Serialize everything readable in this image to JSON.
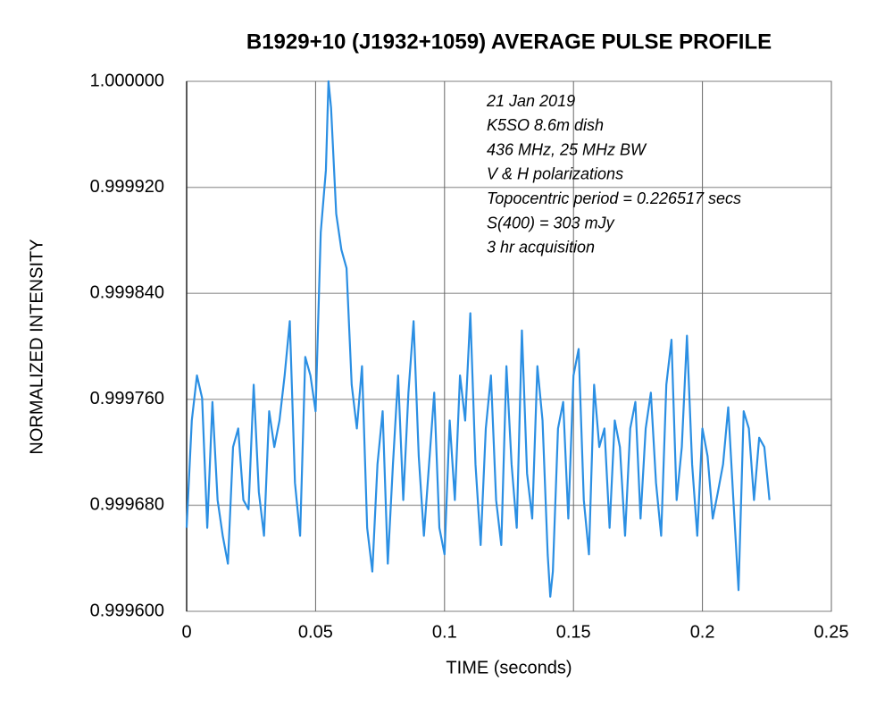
{
  "chart_data": {
    "type": "line",
    "title": "B1929+10 (J1932+1059) AVERAGE PULSE PROFILE",
    "xlabel": "TIME (seconds)",
    "ylabel": "NORMALIZED INTENSITY",
    "annotations": [
      "21 Jan 2019",
      "K5SO 8.6m dish",
      "436 MHz, 25 MHz BW",
      "V & H polarizations",
      "Topocentric period = 0.226517 secs",
      "S(400) = 303 mJy",
      "3 hr acquisition"
    ],
    "color": "#2b8fe3",
    "grid": true,
    "xlim": [
      0,
      0.25
    ],
    "xticks": [
      0,
      0.05,
      0.1,
      0.15,
      0.2,
      0.25
    ],
    "ylim": [
      0.9996,
      1.0
    ],
    "yticks": [
      {
        "value": 0.9996,
        "label": "0.999600"
      },
      {
        "value": 0.99968,
        "label": "0.999680"
      },
      {
        "value": 0.99976,
        "label": "0.999760"
      },
      {
        "value": 0.99984,
        "label": "0.999840"
      },
      {
        "value": 0.99992,
        "label": "0.999920"
      },
      {
        "value": 1.0,
        "label": "1.000000"
      }
    ],
    "x": [
      0,
      0.002,
      0.004,
      0.006,
      0.008,
      0.01,
      0.012,
      0.014,
      0.016,
      0.018,
      0.02,
      0.022,
      0.024,
      0.026,
      0.028,
      0.03,
      0.032,
      0.034,
      0.036,
      0.038,
      0.04,
      0.042,
      0.044,
      0.046,
      0.048,
      0.05,
      0.052,
      0.054,
      0.055,
      0.056,
      0.058,
      0.06,
      0.062,
      0.064,
      0.066,
      0.068,
      0.07,
      0.072,
      0.074,
      0.076,
      0.078,
      0.08,
      0.082,
      0.084,
      0.086,
      0.088,
      0.09,
      0.092,
      0.094,
      0.096,
      0.098,
      0.1,
      0.102,
      0.104,
      0.106,
      0.108,
      0.11,
      0.112,
      0.114,
      0.116,
      0.118,
      0.12,
      0.122,
      0.124,
      0.126,
      0.128,
      0.13,
      0.132,
      0.134,
      0.136,
      0.138,
      0.14,
      0.141,
      0.142,
      0.144,
      0.146,
      0.148,
      0.15,
      0.152,
      0.154,
      0.156,
      0.158,
      0.16,
      0.162,
      0.164,
      0.166,
      0.168,
      0.17,
      0.172,
      0.174,
      0.176,
      0.178,
      0.18,
      0.182,
      0.184,
      0.186,
      0.188,
      0.19,
      0.192,
      0.194,
      0.196,
      0.198,
      0.2,
      0.202,
      0.204,
      0.206,
      0.208,
      0.21,
      0.212,
      0.214,
      0.216,
      0.218,
      0.22,
      0.222,
      0.224,
      0.226
    ],
    "values": [
      0.999663,
      0.999744,
      0.999778,
      0.999761,
      0.999663,
      0.999758,
      0.999684,
      0.999657,
      0.999636,
      0.999724,
      0.999738,
      0.999684,
      0.999677,
      0.999771,
      0.99969,
      0.999657,
      0.999751,
      0.999724,
      0.999744,
      0.999778,
      0.999819,
      0.999697,
      0.999657,
      0.999792,
      0.999778,
      0.999751,
      0.999886,
      0.999933,
      1.0,
      0.99998,
      0.9999,
      0.999873,
      0.999859,
      0.999771,
      0.999738,
      0.999785,
      0.999663,
      0.99963,
      0.999711,
      0.999751,
      0.999636,
      0.999711,
      0.999778,
      0.999684,
      0.999765,
      0.999819,
      0.999717,
      0.999657,
      0.999711,
      0.999765,
      0.999663,
      0.999643,
      0.999744,
      0.999684,
      0.999778,
      0.999744,
      0.999825,
      0.999711,
      0.99965,
      0.999738,
      0.999778,
      0.999684,
      0.99965,
      0.999785,
      0.999711,
      0.999663,
      0.999812,
      0.999704,
      0.99967,
      0.999785,
      0.999744,
      0.999643,
      0.999611,
      0.99963,
      0.999738,
      0.999758,
      0.99967,
      0.999778,
      0.999798,
      0.999684,
      0.999643,
      0.999771,
      0.999724,
      0.999738,
      0.999663,
      0.999744,
      0.999724,
      0.999657,
      0.999738,
      0.999758,
      0.99967,
      0.999738,
      0.999765,
      0.999697,
      0.999657,
      0.999771,
      0.999805,
      0.999684,
      0.999724,
      0.999808,
      0.999711,
      0.999657,
      0.999738,
      0.999717,
      0.99967,
      0.99969,
      0.999711,
      0.999754,
      0.999684,
      0.999616,
      0.999751,
      0.999738,
      0.999684,
      0.999731,
      0.999724,
      0.999684
    ]
  }
}
